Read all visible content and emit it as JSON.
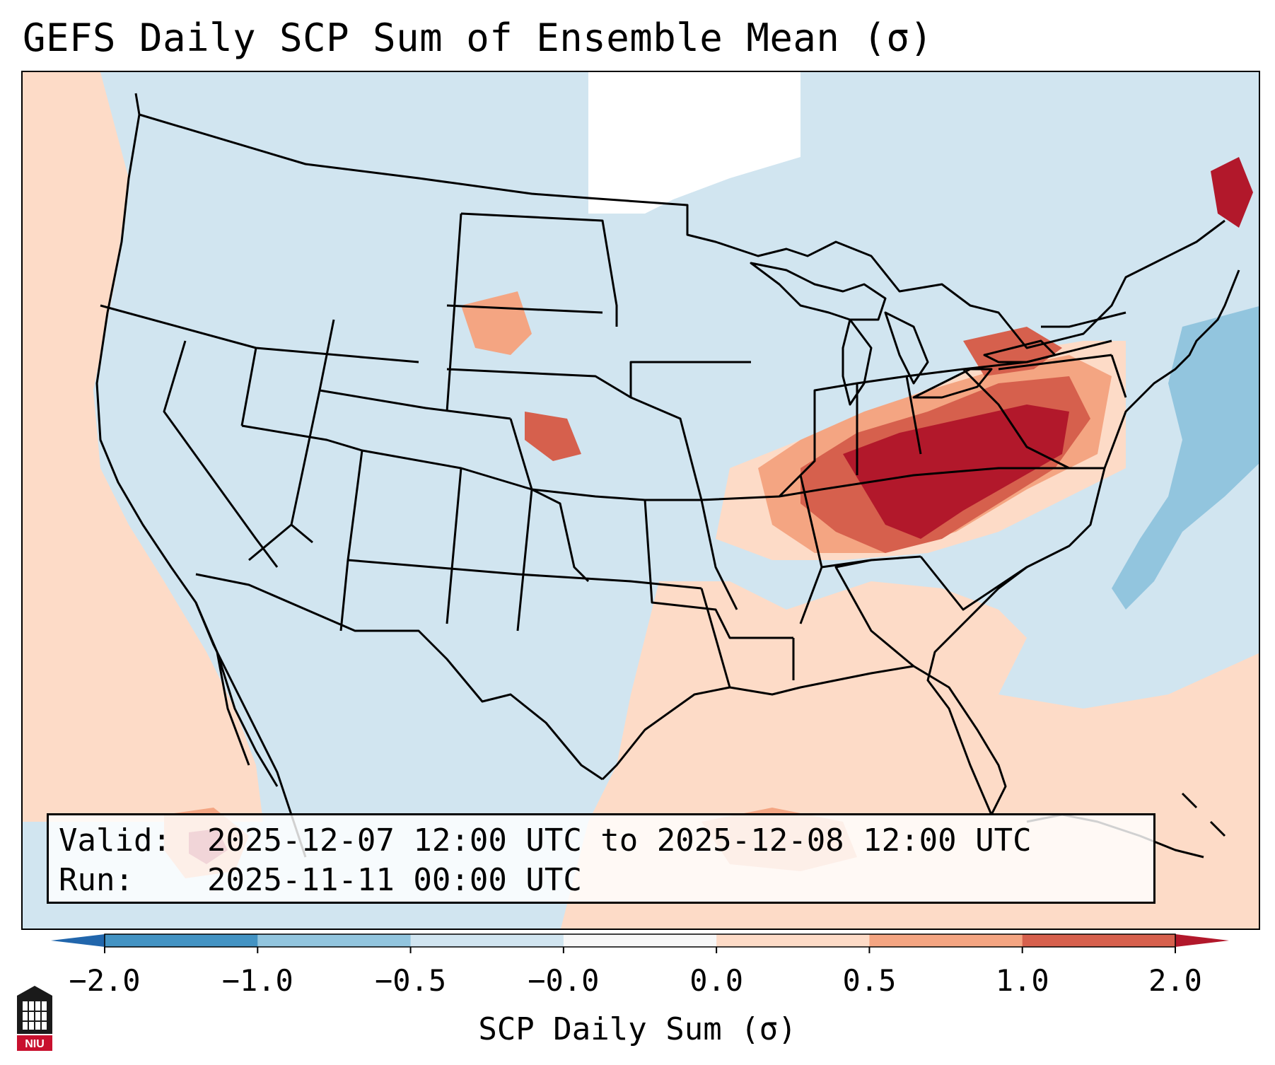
{
  "title": "GEFS Daily SCP Sum of Ensemble Mean (σ)",
  "info": {
    "valid_label": "Valid:",
    "valid_value": "2025-12-07 12:00 UTC to 2025-12-08 12:00 UTC",
    "run_label": "Run:",
    "run_value": "2025-11-11 00:00 UTC"
  },
  "colorbar": {
    "label": "SCP Daily Sum (σ)",
    "ticks": [
      "−2.0",
      "−1.0",
      "−0.5",
      "−0.0",
      "0.0",
      "0.5",
      "1.0",
      "2.0"
    ],
    "colors": [
      "#4393c3",
      "#92c5de",
      "#d1e5f0",
      "#f7f7f7",
      "#fddbc7",
      "#f4a582",
      "#d6604d"
    ],
    "under_color": "#2166ac",
    "over_color": "#b2182b"
  },
  "logo": {
    "text": "NIU"
  },
  "field_colors": {
    "ocean_background": "#d1e5f0",
    "light_positive": "#fddbc7",
    "moderate_positive": "#f4a582",
    "strong_positive": "#d6604d",
    "extreme_positive": "#b2182b",
    "near_zero": "#ffffff",
    "light_negative": "#92c5de"
  }
}
